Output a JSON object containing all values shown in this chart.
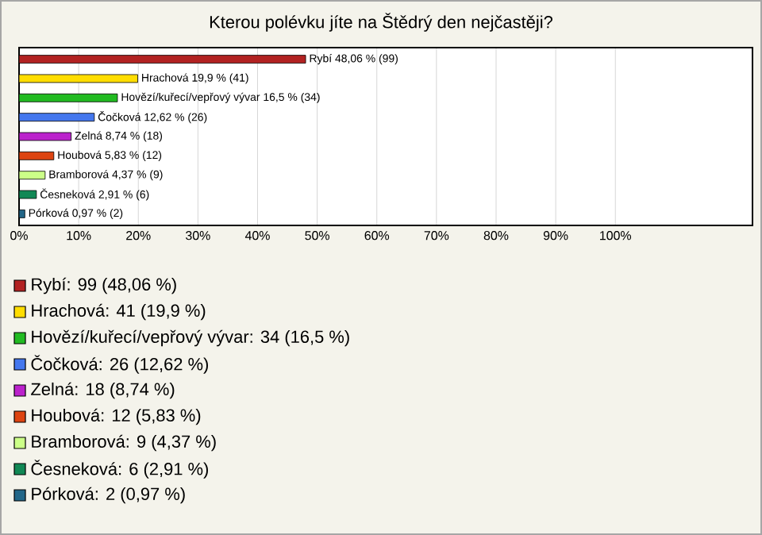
{
  "chart_data": {
    "type": "bar",
    "orientation": "horizontal",
    "title": "Kterou polévku jíte na Štědrý den nejčastěji?",
    "categories": [
      null,
      null,
      null,
      null,
      null,
      null,
      null,
      null,
      null
    ],
    "values": [
      48.06,
      19.9,
      16.5,
      12.62,
      8.74,
      5.83,
      4.37,
      2.91,
      0.97
    ],
    "value_labels": [
      "Rybí 48,06 % (99)",
      "Hrachová 19,9 % (41)",
      "Hovězí/kuřecí/vepřový vývar 16,5 % (34)",
      "Čočková 12,62 % (26)",
      "Zelná 8,74 % (18)",
      "Houbová 5,83 % (12)",
      "Bramborová 4,37 % (9)",
      "Česneková 2,91 % (6)",
      "Pórková 0,97 % (2)"
    ],
    "colors": [
      "#b22222",
      "#ffdd00",
      "#22bb22",
      "#4477ee",
      "#bb22cc",
      "#dd4411",
      "#ccff88",
      "#118855",
      "#226688"
    ],
    "xlim": [
      0,
      123
    ],
    "xticks": [
      {
        "value": 0,
        "label": "0%"
      },
      {
        "value": 10,
        "label": "10%"
      },
      {
        "value": 20,
        "label": "20%"
      },
      {
        "value": 30,
        "label": "30%"
      },
      {
        "value": 40,
        "label": "40%"
      },
      {
        "value": 50,
        "label": "50%"
      },
      {
        "value": 60,
        "label": "60%"
      },
      {
        "value": 70,
        "label": "70%"
      },
      {
        "value": 80,
        "label": "80%"
      },
      {
        "value": 90,
        "label": "90%"
      },
      {
        "value": 100,
        "label": "100%"
      }
    ],
    "grid": "x",
    "annotations": [
      "Rybí: 99 (48,06 %)",
      "Hrachová: 41 (19,9 %)",
      "Hovězí/kuřecí/vepřový vývar: 34 (16,5 %)",
      "Čočková: 26 (12,62 %)",
      "Zelná: 18 (8,74 %)",
      "Houbová: 12 (5,83 %)",
      "Bramborová: 9 (4,37 %)",
      "Česneková: 6 (2,91 %)",
      "Pórková: 2 (0,97 %)"
    ]
  }
}
